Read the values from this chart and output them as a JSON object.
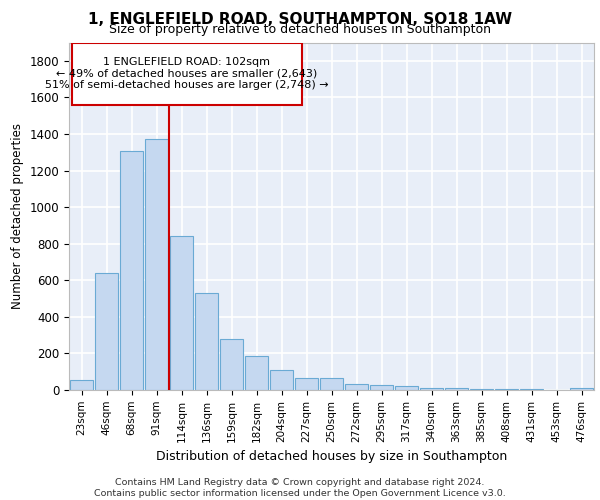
{
  "title1": "1, ENGLEFIELD ROAD, SOUTHAMPTON, SO18 1AW",
  "title2": "Size of property relative to detached houses in Southampton",
  "xlabel": "Distribution of detached houses by size in Southampton",
  "ylabel": "Number of detached properties",
  "categories": [
    "23sqm",
    "46sqm",
    "68sqm",
    "91sqm",
    "114sqm",
    "136sqm",
    "159sqm",
    "182sqm",
    "204sqm",
    "227sqm",
    "250sqm",
    "272sqm",
    "295sqm",
    "317sqm",
    "340sqm",
    "363sqm",
    "385sqm",
    "408sqm",
    "431sqm",
    "453sqm",
    "476sqm"
  ],
  "values": [
    55,
    640,
    1305,
    1375,
    840,
    530,
    280,
    185,
    110,
    65,
    65,
    35,
    30,
    20,
    10,
    10,
    5,
    5,
    3,
    2,
    12
  ],
  "bar_color": "#c5d8f0",
  "bar_edge_color": "#6aaad4",
  "background_color": "#e8eef8",
  "grid_color": "#ffffff",
  "vline_x": 3.5,
  "vline_color": "#cc0000",
  "annotation_text": "1 ENGLEFIELD ROAD: 102sqm\n← 49% of detached houses are smaller (2,643)\n51% of semi-detached houses are larger (2,748) →",
  "annotation_box_color": "#ffffff",
  "annotation_box_edge": "#cc0000",
  "footer_text": "Contains HM Land Registry data © Crown copyright and database right 2024.\nContains public sector information licensed under the Open Government Licence v3.0.",
  "ylim": [
    0,
    1900
  ],
  "yticks": [
    0,
    200,
    400,
    600,
    800,
    1000,
    1200,
    1400,
    1600,
    1800
  ]
}
